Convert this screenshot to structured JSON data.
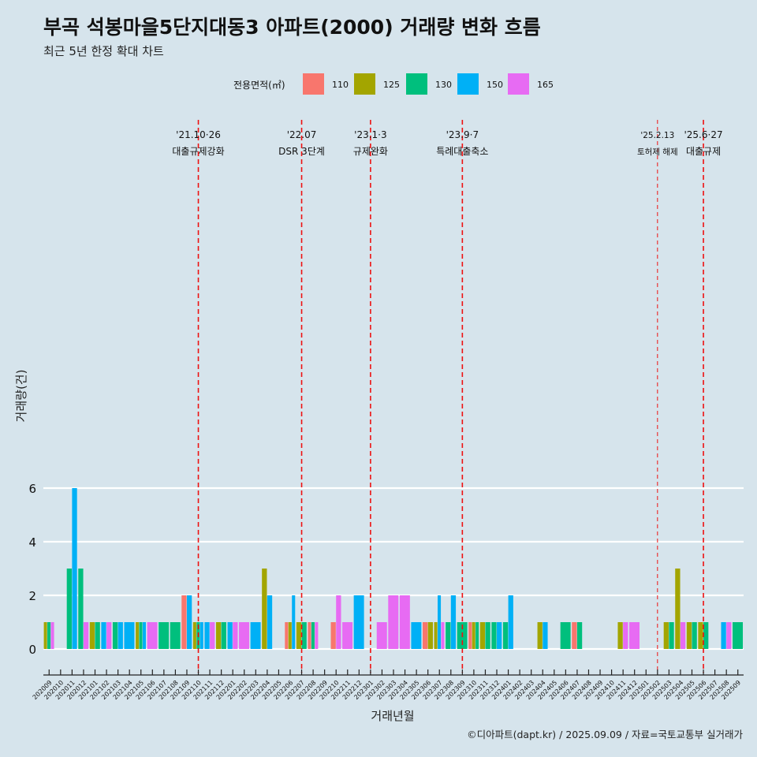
{
  "title": "부곡 석봉마을5단지대동3 아파트(2000) 거래량 변화 흐름",
  "subtitle": "최근 5년 한정 확대 차트",
  "caption": "©디아파트(dapt.kr) / 2025.09.09 / 자료=국토교통부 실거래가",
  "colors": {
    "background": "#d6e4ec",
    "grid": "#ffffff",
    "event_line": "#ee1111",
    "110": "#f8766d",
    "125": "#a3a500",
    "130": "#00bf7d",
    "150": "#00b0f6",
    "165": "#e76bf3"
  },
  "chart_data": {
    "type": "bar",
    "xlabel": "거래년월",
    "ylabel": "거래량(건)",
    "ylim": [
      0,
      6
    ],
    "yticks": [
      0,
      2,
      4,
      6
    ],
    "grid": true,
    "legend_title": "전용면적(㎡)",
    "legend_position": "top",
    "categories": [
      "202009",
      "202010",
      "202011",
      "202012",
      "202101",
      "202102",
      "202103",
      "202104",
      "202105",
      "202106",
      "202107",
      "202108",
      "202109",
      "202110",
      "202111",
      "202112",
      "202201",
      "202202",
      "202203",
      "202204",
      "202205",
      "202206",
      "202207",
      "202208",
      "202209",
      "202210",
      "202211",
      "202212",
      "202301",
      "202302",
      "202303",
      "202304",
      "202305",
      "202306",
      "202307",
      "202308",
      "202309",
      "202310",
      "202311",
      "202312",
      "202401",
      "202402",
      "202403",
      "202404",
      "202405",
      "202406",
      "202407",
      "202408",
      "202409",
      "202410",
      "202411",
      "202412",
      "202501",
      "202502",
      "202503",
      "202504",
      "202505",
      "202506",
      "202507",
      "202508",
      "202509"
    ],
    "series": [
      {
        "name": "110",
        "values": [
          0,
          0,
          0,
          0,
          0,
          0,
          0,
          0,
          0,
          0,
          0,
          0,
          2,
          0,
          0,
          0,
          0,
          0,
          0,
          0,
          0,
          1,
          0,
          1,
          0,
          1,
          0,
          0,
          0,
          0,
          0,
          0,
          0,
          1,
          0,
          0,
          0,
          1,
          0,
          0,
          0,
          0,
          0,
          0,
          0,
          0,
          1,
          0,
          0,
          0,
          0,
          0,
          0,
          0,
          0,
          0,
          0,
          0,
          0,
          0,
          0
        ]
      },
      {
        "name": "125",
        "values": [
          1,
          0,
          0,
          0,
          1,
          0,
          0,
          0,
          1,
          0,
          0,
          0,
          0,
          1,
          0,
          1,
          0,
          0,
          0,
          3,
          0,
          1,
          1,
          0,
          0,
          0,
          0,
          0,
          0,
          0,
          0,
          0,
          0,
          1,
          1,
          0,
          0,
          1,
          1,
          0,
          0,
          0,
          0,
          1,
          0,
          0,
          0,
          0,
          0,
          0,
          1,
          0,
          0,
          0,
          1,
          3,
          1,
          1,
          0,
          0,
          0
        ]
      },
      {
        "name": "130",
        "values": [
          1,
          0,
          3,
          3,
          1,
          0,
          1,
          0,
          1,
          0,
          1,
          1,
          0,
          1,
          0,
          1,
          0,
          0,
          0,
          0,
          0,
          0,
          1,
          1,
          0,
          0,
          0,
          0,
          0,
          0,
          0,
          0,
          0,
          0,
          0,
          1,
          1,
          1,
          1,
          1,
          1,
          0,
          0,
          0,
          0,
          1,
          1,
          0,
          0,
          0,
          0,
          0,
          0,
          0,
          1,
          0,
          1,
          1,
          0,
          0,
          1
        ]
      },
      {
        "name": "150",
        "values": [
          0,
          0,
          6,
          0,
          0,
          1,
          1,
          1,
          1,
          0,
          0,
          0,
          2,
          1,
          1,
          0,
          1,
          0,
          1,
          2,
          0,
          2,
          0,
          0,
          0,
          0,
          0,
          2,
          0,
          0,
          0,
          0,
          1,
          0,
          2,
          2,
          0,
          0,
          0,
          1,
          2,
          0,
          0,
          1,
          0,
          0,
          0,
          0,
          0,
          0,
          0,
          0,
          0,
          0,
          0,
          0,
          0,
          0,
          0,
          1,
          0
        ]
      },
      {
        "name": "165",
        "values": [
          1,
          0,
          0,
          1,
          0,
          1,
          0,
          0,
          0,
          1,
          0,
          0,
          0,
          0,
          1,
          0,
          1,
          1,
          0,
          0,
          0,
          0,
          0,
          1,
          0,
          2,
          1,
          0,
          0,
          1,
          2,
          2,
          0,
          0,
          1,
          0,
          0,
          0,
          0,
          0,
          0,
          0,
          0,
          0,
          0,
          0,
          0,
          0,
          0,
          0,
          1,
          1,
          0,
          0,
          0,
          1,
          0,
          0,
          0,
          1,
          0
        ]
      }
    ],
    "events": [
      {
        "date_label": "'21.10·26",
        "text": "대출규제강화",
        "month": "202110",
        "line_style": "dashed"
      },
      {
        "date_label": "'22.07",
        "text": "DSR 3단계",
        "month": "202207",
        "line_style": "dashed"
      },
      {
        "date_label": "'23.1·3",
        "text": "규제완화",
        "month": "202301",
        "line_style": "dashed"
      },
      {
        "date_label": "'23.9·7",
        "text": "특례대출축소",
        "month": "202309",
        "line_style": "dashed"
      },
      {
        "date_label": "'25.2.13",
        "text": "토허제 해제",
        "month": "202502",
        "line_style": "thin-dashed"
      },
      {
        "date_label": "'25.6·27",
        "text": "대출규제",
        "month": "202506",
        "line_style": "dashed"
      }
    ]
  }
}
